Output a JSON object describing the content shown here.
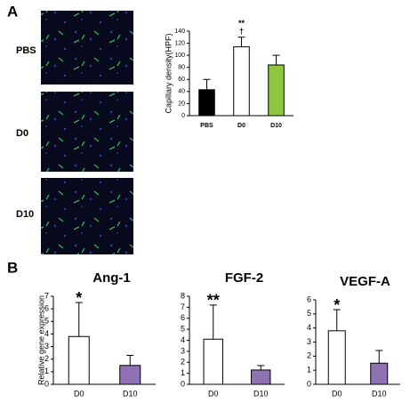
{
  "figure": {
    "panel_a": "A",
    "panel_b": "B",
    "image_rows": [
      "PBS",
      "D0",
      "D10"
    ]
  },
  "chart_data": [
    {
      "type": "bar",
      "y_label": "Capillary density(HPF)",
      "categories": [
        "PBS",
        "D0",
        "D10"
      ],
      "values": [
        43,
        114,
        84
      ],
      "errors": [
        17,
        16,
        16
      ],
      "colors": [
        "#000000",
        "#ffffff",
        "#8dc63f"
      ],
      "ylim": [
        0,
        140
      ],
      "yticks": [
        0,
        20,
        40,
        60,
        80,
        100,
        120,
        140
      ],
      "annotations": [
        {
          "text": "**",
          "category": "D0"
        },
        {
          "text": "†",
          "category": "D0"
        }
      ]
    },
    {
      "type": "bar",
      "title": "Ang-1",
      "y_label": "Relative gene expression",
      "categories": [
        "D0",
        "D10"
      ],
      "values": [
        3.8,
        1.5
      ],
      "errors": [
        2.7,
        0.8
      ],
      "colors": [
        "#ffffff",
        "#8e72b4"
      ],
      "ylim": [
        0,
        7
      ],
      "yticks": [
        0,
        1,
        2,
        3,
        4,
        5,
        6,
        7
      ],
      "annotations": [
        {
          "text": "*",
          "category": "D0"
        }
      ]
    },
    {
      "type": "bar",
      "title": "FGF-2",
      "categories": [
        "D0",
        "D10"
      ],
      "values": [
        4.1,
        1.3
      ],
      "errors": [
        3.1,
        0.4
      ],
      "colors": [
        "#ffffff",
        "#8e72b4"
      ],
      "ylim": [
        0,
        8
      ],
      "yticks": [
        0,
        1,
        2,
        3,
        4,
        5,
        6,
        7,
        8
      ],
      "annotations": [
        {
          "text": "**",
          "category": "D0"
        }
      ]
    },
    {
      "type": "bar",
      "title": "VEGF-A",
      "categories": [
        "D0",
        "D10"
      ],
      "values": [
        3.8,
        1.5
      ],
      "errors": [
        1.5,
        0.9
      ],
      "colors": [
        "#ffffff",
        "#8e72b4"
      ],
      "ylim": [
        0,
        6
      ],
      "yticks": [
        0,
        1,
        2,
        3,
        4,
        5,
        6
      ],
      "annotations": [
        {
          "text": "*",
          "category": "D0"
        }
      ]
    }
  ]
}
